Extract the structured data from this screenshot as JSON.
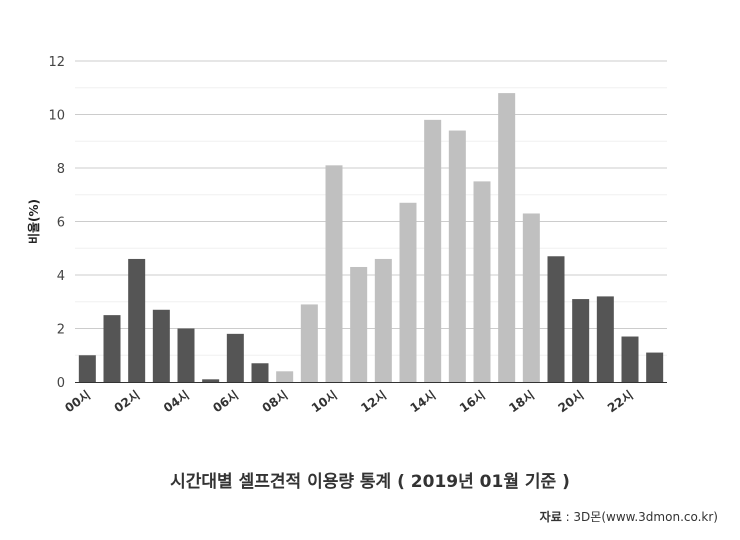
{
  "chart_data": {
    "type": "bar",
    "title": "시간대별 셀프견적 이용량 통계 ( 2019년 01월 기준 )",
    "ylabel": "비율(%)",
    "xlabel": "",
    "ylim": [
      0,
      12
    ],
    "yticks": [
      0,
      2,
      4,
      6,
      8,
      10,
      12
    ],
    "grid": true,
    "categories": [
      "00시",
      "01시",
      "02시",
      "03시",
      "04시",
      "05시",
      "06시",
      "07시",
      "08시",
      "09시",
      "10시",
      "11시",
      "12시",
      "13시",
      "14시",
      "15시",
      "16시",
      "17시",
      "18시",
      "19시",
      "20시",
      "21시",
      "22시",
      "23시"
    ],
    "x_tick_labels": [
      "00시",
      "02시",
      "04시",
      "06시",
      "08시",
      "10시",
      "12시",
      "14시",
      "16시",
      "18시",
      "20시",
      "22시"
    ],
    "values": [
      1.0,
      2.5,
      4.6,
      2.7,
      2.0,
      0.1,
      1.8,
      0.7,
      0.4,
      2.9,
      8.1,
      4.3,
      4.6,
      6.7,
      9.8,
      9.4,
      7.5,
      10.8,
      6.3,
      4.7,
      3.1,
      3.2,
      1.7,
      1.1
    ],
    "colors": {
      "dark": "#555555",
      "light": "#c0c0c0"
    },
    "bar_shades": [
      "dark",
      "dark",
      "dark",
      "dark",
      "dark",
      "dark",
      "dark",
      "dark",
      "light",
      "light",
      "light",
      "light",
      "light",
      "light",
      "light",
      "light",
      "light",
      "light",
      "light",
      "dark",
      "dark",
      "dark",
      "dark",
      "dark"
    ]
  },
  "source": {
    "label": "자료",
    "separator": " : ",
    "text": "3D몬(www.3dmon.co.kr)"
  }
}
